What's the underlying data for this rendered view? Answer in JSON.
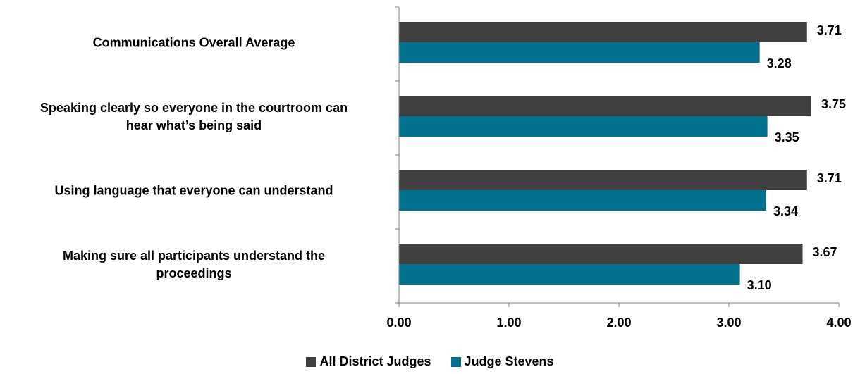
{
  "chart_data": {
    "type": "bar",
    "orientation": "horizontal",
    "categories": [
      "Communications Overall Average",
      "Speaking clearly so everyone in the courtroom can\nhear what’s being said",
      "Using language that everyone can understand",
      "Making sure all participants understand the\nproceedings"
    ],
    "series": [
      {
        "name": "All District Judges",
        "color": "#3f3f3f",
        "values": [
          3.71,
          3.75,
          3.71,
          3.67
        ],
        "labels": [
          "3.71",
          "3.75",
          "3.71",
          "3.67"
        ]
      },
      {
        "name": "Judge Stevens",
        "color": "#00718f",
        "values": [
          3.28,
          3.35,
          3.34,
          3.1
        ],
        "labels": [
          "3.28",
          "3.35",
          "3.34",
          "3.10"
        ]
      }
    ],
    "xlim": [
      0,
      4
    ],
    "xticks": [
      0,
      1,
      2,
      3,
      4
    ],
    "xtick_labels": [
      "0.00",
      "1.00",
      "2.00",
      "3.00",
      "4.00"
    ],
    "grid": false,
    "legend": "bottom"
  }
}
